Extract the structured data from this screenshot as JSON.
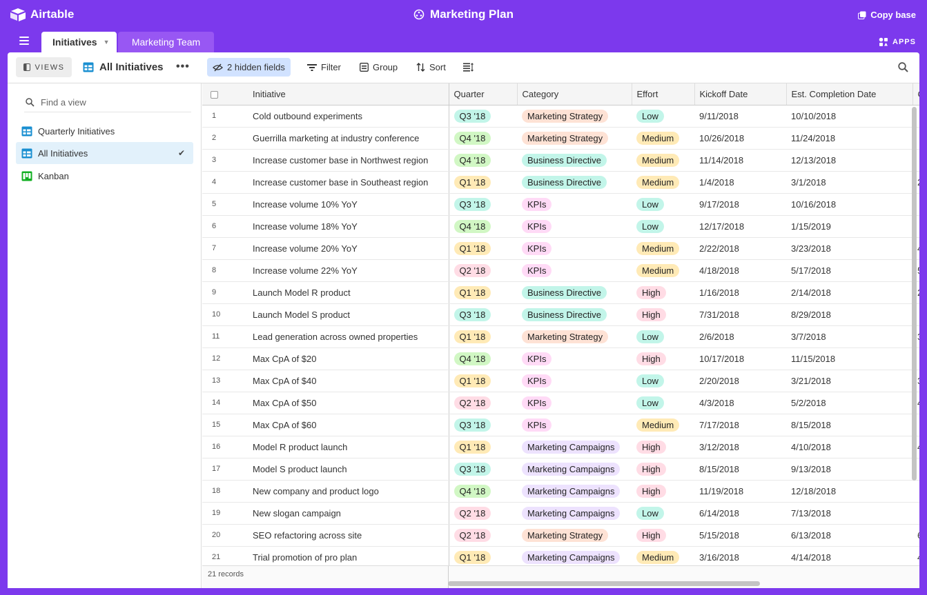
{
  "app": {
    "logo_text": "Airtable",
    "base_title": "Marketing Plan",
    "copy_base_label": "Copy base",
    "apps_label": "APPS"
  },
  "tabs": [
    {
      "label": "Initiatives",
      "active": true
    },
    {
      "label": "Marketing Team",
      "active": false
    }
  ],
  "toolbar": {
    "views_label": "VIEWS",
    "current_view": "All Initiatives",
    "more_label": "•••",
    "hidden_fields_label": "2 hidden fields",
    "filter_label": "Filter",
    "group_label": "Group",
    "sort_label": "Sort"
  },
  "sidebar": {
    "find_placeholder": "Find a view",
    "views": [
      {
        "label": "Quarterly Initiatives",
        "icon": "grid-view-icon",
        "selected": false
      },
      {
        "label": "All Initiatives",
        "icon": "grid-view-icon",
        "selected": true,
        "check": "✔"
      },
      {
        "label": "Kanban",
        "icon": "kanban-view-icon",
        "selected": false
      }
    ]
  },
  "colors": {
    "quarter": {
      "Q1 '18": "#ffeab6",
      "Q2 '18": "#ffdce5",
      "Q3 '18": "#c2f5e9",
      "Q4 '18": "#d1f7c4"
    },
    "category": {
      "Marketing Strategy": "#fee2d5",
      "Business Directive": "#c2f5e9",
      "KPIs": "#ffdaf6",
      "Marketing Campaigns": "#ede2fe"
    },
    "effort": {
      "Low": "#c2f5e9",
      "Medium": "#ffeab6",
      "High": "#ffdce5"
    }
  },
  "table": {
    "columns": [
      "Initiative",
      "Quarter",
      "Category",
      "Effort",
      "Kickoff Date",
      "Est. Completion Date",
      "C"
    ],
    "rows": [
      {
        "n": "1",
        "initiative": "Cold outbound experiments",
        "quarter": "Q3 '18",
        "category": "Marketing Strategy",
        "effort": "Low",
        "kickoff": "9/11/2018",
        "completion": "10/10/2018",
        "extra": ""
      },
      {
        "n": "2",
        "initiative": "Guerrilla marketing at industry conference",
        "quarter": "Q4 '18",
        "category": "Marketing Strategy",
        "effort": "Medium",
        "kickoff": "10/26/2018",
        "completion": "11/24/2018",
        "extra": ""
      },
      {
        "n": "3",
        "initiative": "Increase customer base in Northwest region",
        "quarter": "Q4 '18",
        "category": "Business Directive",
        "effort": "Medium",
        "kickoff": "11/14/2018",
        "completion": "12/13/2018",
        "extra": ""
      },
      {
        "n": "4",
        "initiative": "Increase customer base in Southeast region",
        "quarter": "Q1 '18",
        "category": "Business Directive",
        "effort": "Medium",
        "kickoff": "1/4/2018",
        "completion": "3/1/2018",
        "extra": "2"
      },
      {
        "n": "5",
        "initiative": "Increase volume 10% YoY",
        "quarter": "Q3 '18",
        "category": "KPIs",
        "effort": "Low",
        "kickoff": "9/17/2018",
        "completion": "10/16/2018",
        "extra": ""
      },
      {
        "n": "6",
        "initiative": "Increase volume 18% YoY",
        "quarter": "Q4 '18",
        "category": "KPIs",
        "effort": "Low",
        "kickoff": "12/17/2018",
        "completion": "1/15/2019",
        "extra": ""
      },
      {
        "n": "7",
        "initiative": "Increase volume 20% YoY",
        "quarter": "Q1 '18",
        "category": "KPIs",
        "effort": "Medium",
        "kickoff": "2/22/2018",
        "completion": "3/23/2018",
        "extra": "4"
      },
      {
        "n": "8",
        "initiative": "Increase volume 22% YoY",
        "quarter": "Q2 '18",
        "category": "KPIs",
        "effort": "Medium",
        "kickoff": "4/18/2018",
        "completion": "5/17/2018",
        "extra": "5"
      },
      {
        "n": "9",
        "initiative": "Launch Model R product",
        "quarter": "Q1 '18",
        "category": "Business Directive",
        "effort": "High",
        "kickoff": "1/16/2018",
        "completion": "2/14/2018",
        "extra": "2"
      },
      {
        "n": "10",
        "initiative": "Launch Model S product",
        "quarter": "Q3 '18",
        "category": "Business Directive",
        "effort": "High",
        "kickoff": "7/31/2018",
        "completion": "8/29/2018",
        "extra": ""
      },
      {
        "n": "11",
        "initiative": "Lead generation across owned properties",
        "quarter": "Q1 '18",
        "category": "Marketing Strategy",
        "effort": "Low",
        "kickoff": "2/6/2018",
        "completion": "3/7/2018",
        "extra": "3"
      },
      {
        "n": "12",
        "initiative": "Max CpA of $20",
        "quarter": "Q4 '18",
        "category": "KPIs",
        "effort": "High",
        "kickoff": "10/17/2018",
        "completion": "11/15/2018",
        "extra": ""
      },
      {
        "n": "13",
        "initiative": "Max CpA of $40",
        "quarter": "Q1 '18",
        "category": "KPIs",
        "effort": "Low",
        "kickoff": "2/20/2018",
        "completion": "3/21/2018",
        "extra": "3"
      },
      {
        "n": "14",
        "initiative": "Max CpA of $50",
        "quarter": "Q2 '18",
        "category": "KPIs",
        "effort": "Low",
        "kickoff": "4/3/2018",
        "completion": "5/2/2018",
        "extra": "4"
      },
      {
        "n": "15",
        "initiative": "Max CpA of $60",
        "quarter": "Q3 '18",
        "category": "KPIs",
        "effort": "Medium",
        "kickoff": "7/17/2018",
        "completion": "8/15/2018",
        "extra": ""
      },
      {
        "n": "16",
        "initiative": "Model R product launch",
        "quarter": "Q1 '18",
        "category": "Marketing Campaigns",
        "effort": "High",
        "kickoff": "3/12/2018",
        "completion": "4/10/2018",
        "extra": "4"
      },
      {
        "n": "17",
        "initiative": "Model S product launch",
        "quarter": "Q3 '18",
        "category": "Marketing Campaigns",
        "effort": "High",
        "kickoff": "8/15/2018",
        "completion": "9/13/2018",
        "extra": ""
      },
      {
        "n": "18",
        "initiative": "New company and product logo",
        "quarter": "Q4 '18",
        "category": "Marketing Campaigns",
        "effort": "High",
        "kickoff": "11/19/2018",
        "completion": "12/18/2018",
        "extra": ""
      },
      {
        "n": "19",
        "initiative": "New slogan campaign",
        "quarter": "Q2 '18",
        "category": "Marketing Campaigns",
        "effort": "Low",
        "kickoff": "6/14/2018",
        "completion": "7/13/2018",
        "extra": ""
      },
      {
        "n": "20",
        "initiative": "SEO refactoring across site",
        "quarter": "Q2 '18",
        "category": "Marketing Strategy",
        "effort": "High",
        "kickoff": "5/15/2018",
        "completion": "6/13/2018",
        "extra": "6"
      },
      {
        "n": "21",
        "initiative": "Trial promotion of pro plan",
        "quarter": "Q1 '18",
        "category": "Marketing Campaigns",
        "effort": "Medium",
        "kickoff": "3/16/2018",
        "completion": "4/14/2018",
        "extra": "4"
      }
    ]
  },
  "footer": {
    "record_count": "21 records"
  }
}
